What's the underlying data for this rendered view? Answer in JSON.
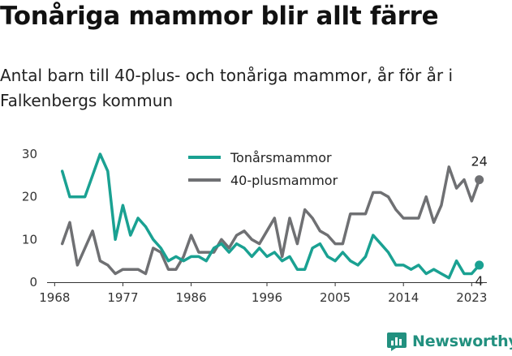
{
  "header": {
    "title": "Tonåriga mammor blir allt färre",
    "subtitle": "Antal barn till 40-plus- och tonåriga mammor, år för år i Falkenbergs kommun"
  },
  "brand": {
    "name": "Newsworthy",
    "icon": "bar-chart-icon",
    "color": "#22907f"
  },
  "chart_data": {
    "type": "line",
    "xlim": [
      1967,
      2025
    ],
    "ylim": [
      0,
      30
    ],
    "x_ticks": [
      1968,
      1977,
      1986,
      1996,
      2005,
      2014,
      2023
    ],
    "y_ticks": [
      0,
      10,
      20,
      30
    ],
    "grid": false,
    "legend_position": "top-center",
    "x": [
      1969,
      1970,
      1971,
      1972,
      1973,
      1974,
      1975,
      1976,
      1977,
      1978,
      1979,
      1980,
      1981,
      1982,
      1983,
      1984,
      1985,
      1986,
      1987,
      1988,
      1989,
      1990,
      1991,
      1992,
      1993,
      1994,
      1995,
      1996,
      1997,
      1998,
      1999,
      2000,
      2001,
      2002,
      2003,
      2004,
      2005,
      2006,
      2007,
      2008,
      2009,
      2010,
      2011,
      2012,
      2013,
      2014,
      2015,
      2016,
      2017,
      2018,
      2019,
      2020,
      2021,
      2022,
      2023,
      2024
    ],
    "series": [
      {
        "name": "Tonårsmammor",
        "color": "#1aa192",
        "values": [
          26,
          20,
          20,
          20,
          25,
          30,
          26,
          10,
          18,
          11,
          15,
          13,
          10,
          8,
          5,
          6,
          5,
          6,
          6,
          5,
          8,
          9,
          7,
          9,
          8,
          6,
          8,
          6,
          7,
          5,
          6,
          3,
          3,
          8,
          9,
          6,
          5,
          7,
          5,
          4,
          6,
          11,
          9,
          7,
          4,
          4,
          3,
          4,
          2,
          3,
          2,
          1,
          5,
          2,
          2,
          4
        ],
        "end_label": "4"
      },
      {
        "name": "40-plusmammor",
        "color": "#6f7073",
        "values": [
          9,
          14,
          4,
          8,
          12,
          5,
          4,
          2,
          3,
          3,
          3,
          2,
          8,
          7,
          3,
          3,
          6,
          11,
          7,
          7,
          7,
          10,
          8,
          11,
          12,
          10,
          9,
          12,
          15,
          6,
          15,
          9,
          17,
          15,
          12,
          11,
          9,
          9,
          16,
          16,
          16,
          21,
          21,
          20,
          17,
          15,
          15,
          15,
          20,
          14,
          18,
          27,
          22,
          24,
          19,
          24
        ],
        "end_label": "24"
      }
    ]
  }
}
